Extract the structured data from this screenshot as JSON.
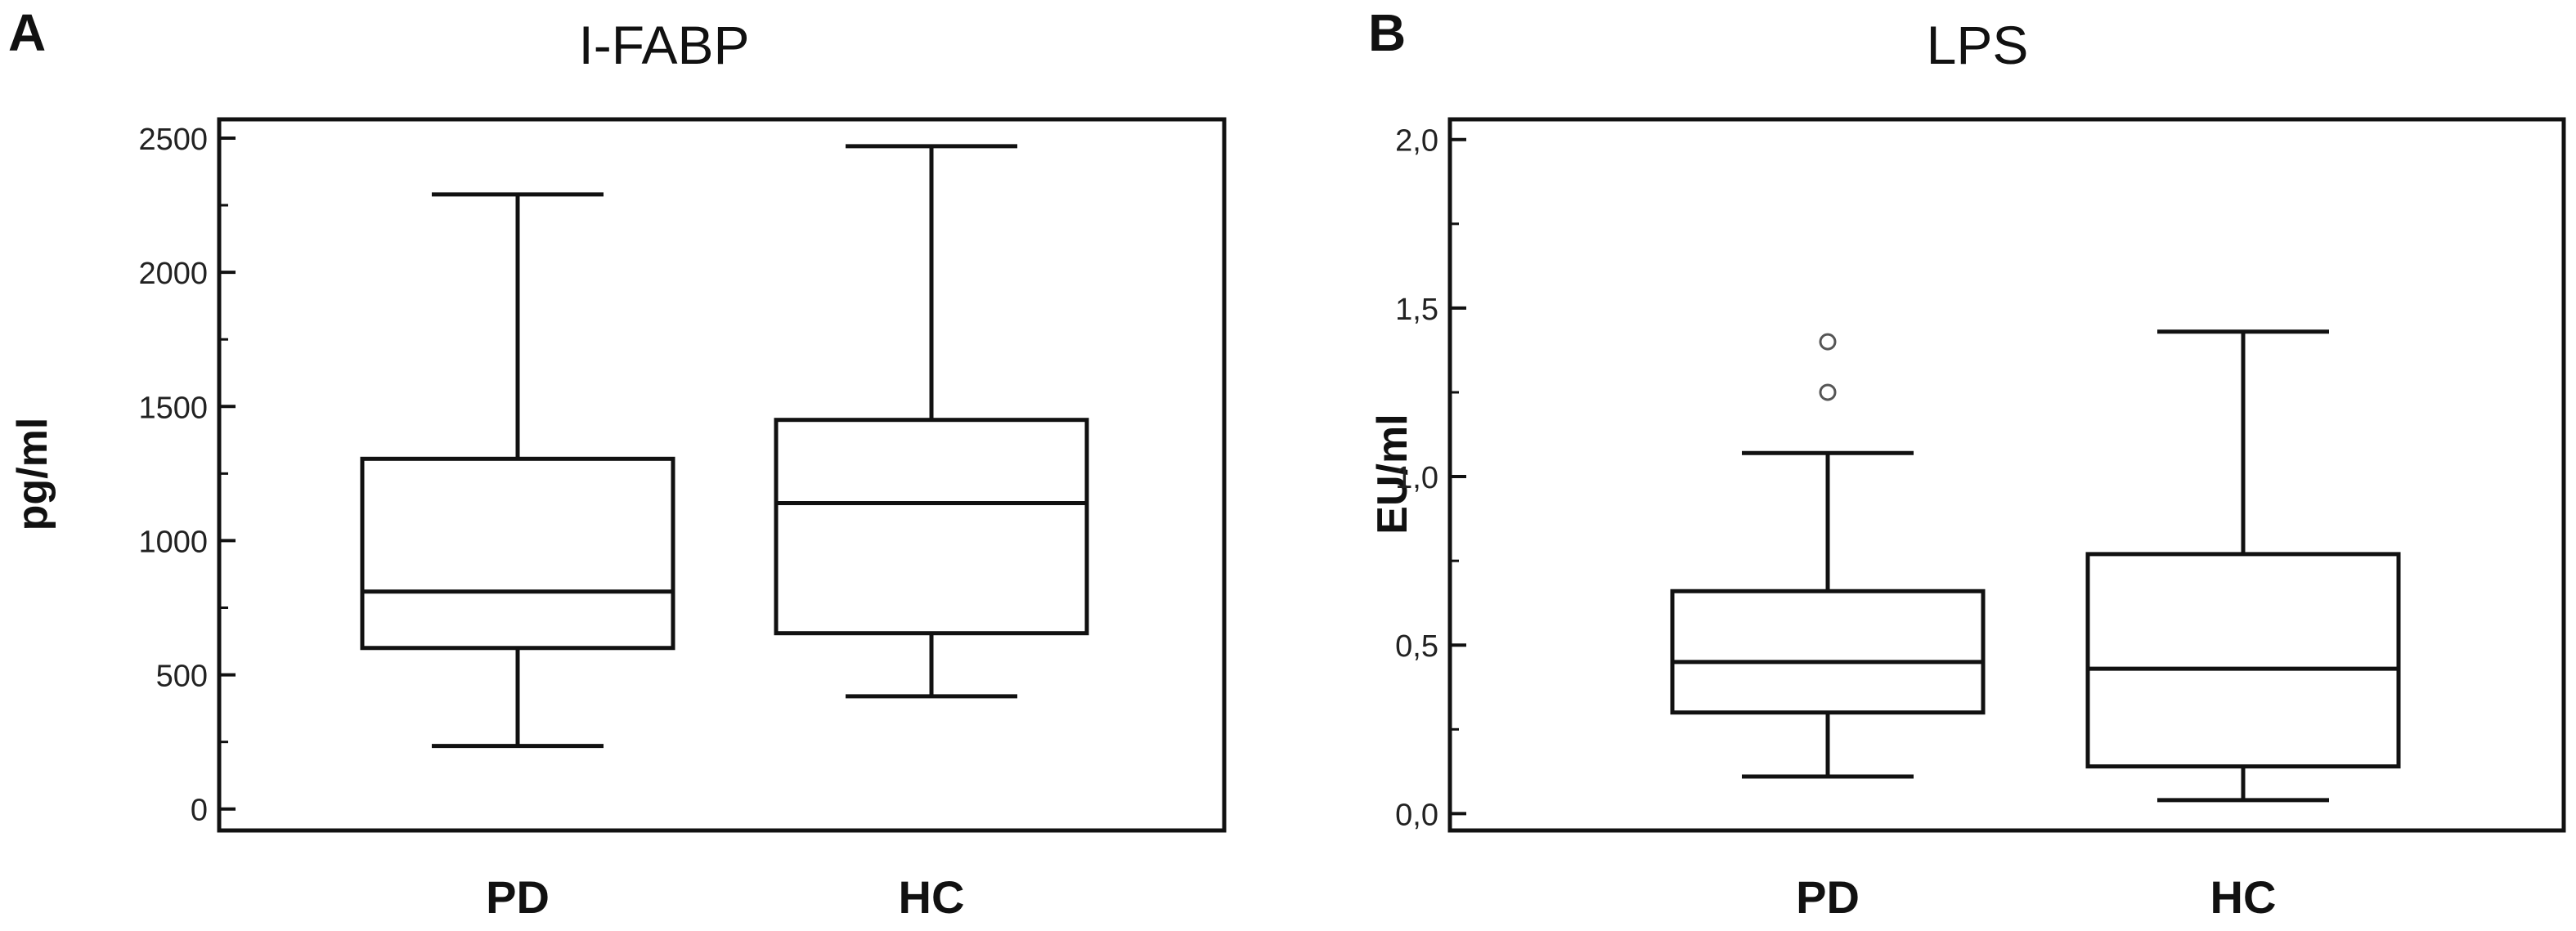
{
  "chart_data": [
    {
      "panel_label": "A",
      "type": "box",
      "title": "I-FABP",
      "ylabel": "pg/ml",
      "xlabel": "",
      "ylim": [
        -80,
        2570
      ],
      "yticks": [
        0,
        500,
        1000,
        1500,
        2000,
        2500
      ],
      "ytick_labels": [
        "0",
        "500",
        "1000",
        "1500",
        "2000",
        "2500"
      ],
      "categories": [
        "PD",
        "HC"
      ],
      "boxes": [
        {
          "category": "PD",
          "whisker_low": 235,
          "q1": 600,
          "median": 810,
          "q3": 1305,
          "whisker_high": 2290,
          "outliers": []
        },
        {
          "category": "HC",
          "whisker_low": 420,
          "q1": 655,
          "median": 1140,
          "q3": 1450,
          "whisker_high": 2470,
          "outliers": []
        }
      ],
      "grid": false
    },
    {
      "panel_label": "B",
      "type": "box",
      "title": "LPS",
      "ylabel": "EU/ml",
      "xlabel": "",
      "ylim": [
        -0.05,
        2.06
      ],
      "yticks": [
        0.0,
        0.5,
        1.0,
        1.5,
        2.0
      ],
      "ytick_labels": [
        "0,0",
        "0,5",
        "1,0",
        "1,5",
        "2,0"
      ],
      "categories": [
        "PD",
        "HC"
      ],
      "boxes": [
        {
          "category": "PD",
          "whisker_low": 0.11,
          "q1": 0.3,
          "median": 0.45,
          "q3": 0.66,
          "whisker_high": 1.07,
          "outliers": [
            1.25,
            1.4
          ]
        },
        {
          "category": "HC",
          "whisker_low": 0.04,
          "q1": 0.14,
          "median": 0.43,
          "q3": 0.77,
          "whisker_high": 1.43,
          "outliers": []
        }
      ],
      "grid": false
    }
  ]
}
